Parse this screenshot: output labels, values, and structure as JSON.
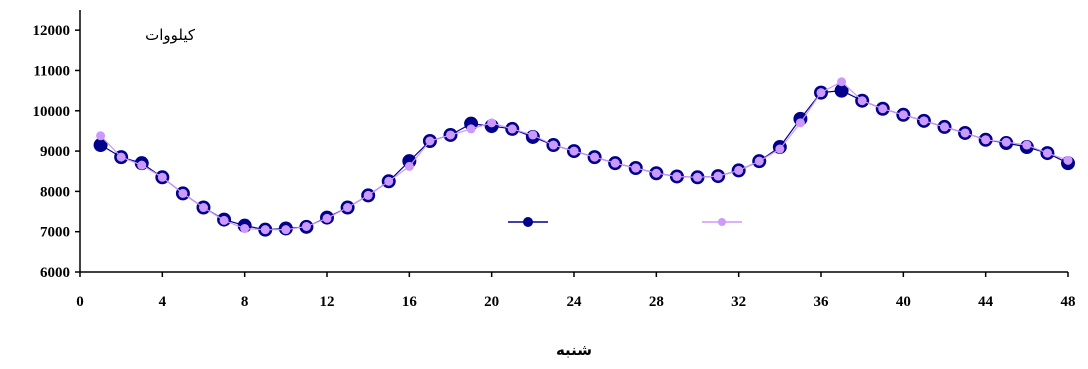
{
  "chart_data": {
    "type": "line",
    "title": "",
    "unit_label": "کیلووات",
    "xlabel": "شنبه",
    "ylabel": "",
    "xlim": [
      0,
      48
    ],
    "ylim": [
      6000,
      12500
    ],
    "xticks": [
      0,
      4,
      8,
      12,
      16,
      20,
      24,
      28,
      32,
      36,
      40,
      44,
      48
    ],
    "yticks": [
      6000,
      7000,
      8000,
      9000,
      10000,
      11000,
      12000
    ],
    "grid": false,
    "legend": "center, series markers only, no text",
    "series": [
      {
        "color": "#00008b",
        "x": [
          1,
          2,
          3,
          4,
          5,
          6,
          7,
          8,
          9,
          10,
          11,
          12,
          13,
          14,
          15,
          16,
          17,
          18,
          19,
          20,
          21,
          22,
          23,
          24,
          25,
          26,
          27,
          28,
          29,
          30,
          31,
          32,
          33,
          34,
          35,
          36,
          37,
          38,
          39,
          40,
          41,
          42,
          43,
          44,
          45,
          46,
          47,
          48
        ],
        "values": [
          9150,
          8850,
          8700,
          8350,
          7950,
          7600,
          7300,
          7150,
          7050,
          7080,
          7120,
          7350,
          7600,
          7900,
          8250,
          8750,
          9250,
          9400,
          9680,
          9620,
          9550,
          9350,
          9150,
          9000,
          8850,
          8700,
          8580,
          8450,
          8370,
          8350,
          8380,
          8520,
          8750,
          9100,
          9800,
          10450,
          10500,
          10250,
          10050,
          9900,
          9750,
          9600,
          9450,
          9280,
          9200,
          9100,
          8950,
          8700
        ]
      },
      {
        "color": "#cc99ff",
        "x": [
          1,
          2,
          3,
          4,
          5,
          6,
          7,
          8,
          9,
          10,
          11,
          12,
          13,
          14,
          15,
          16,
          17,
          18,
          19,
          20,
          21,
          22,
          23,
          24,
          25,
          26,
          27,
          28,
          29,
          30,
          31,
          32,
          33,
          34,
          35,
          36,
          37,
          38,
          39,
          40,
          41,
          42,
          43,
          44,
          45,
          46,
          47,
          48
        ],
        "values": [
          9380,
          8850,
          8650,
          8350,
          7950,
          7600,
          7280,
          7080,
          7050,
          7050,
          7130,
          7330,
          7600,
          7900,
          8250,
          8620,
          9250,
          9400,
          9550,
          9700,
          9550,
          9400,
          9150,
          9000,
          8850,
          8700,
          8580,
          8450,
          8370,
          8350,
          8380,
          8520,
          8750,
          9050,
          9700,
          10450,
          10720,
          10250,
          10050,
          9900,
          9750,
          9600,
          9450,
          9280,
          9220,
          9150,
          8950,
          8770
        ]
      }
    ]
  },
  "colors": {
    "axis": "#000000",
    "series1": "#00008b",
    "series2": "#cc99ff"
  }
}
